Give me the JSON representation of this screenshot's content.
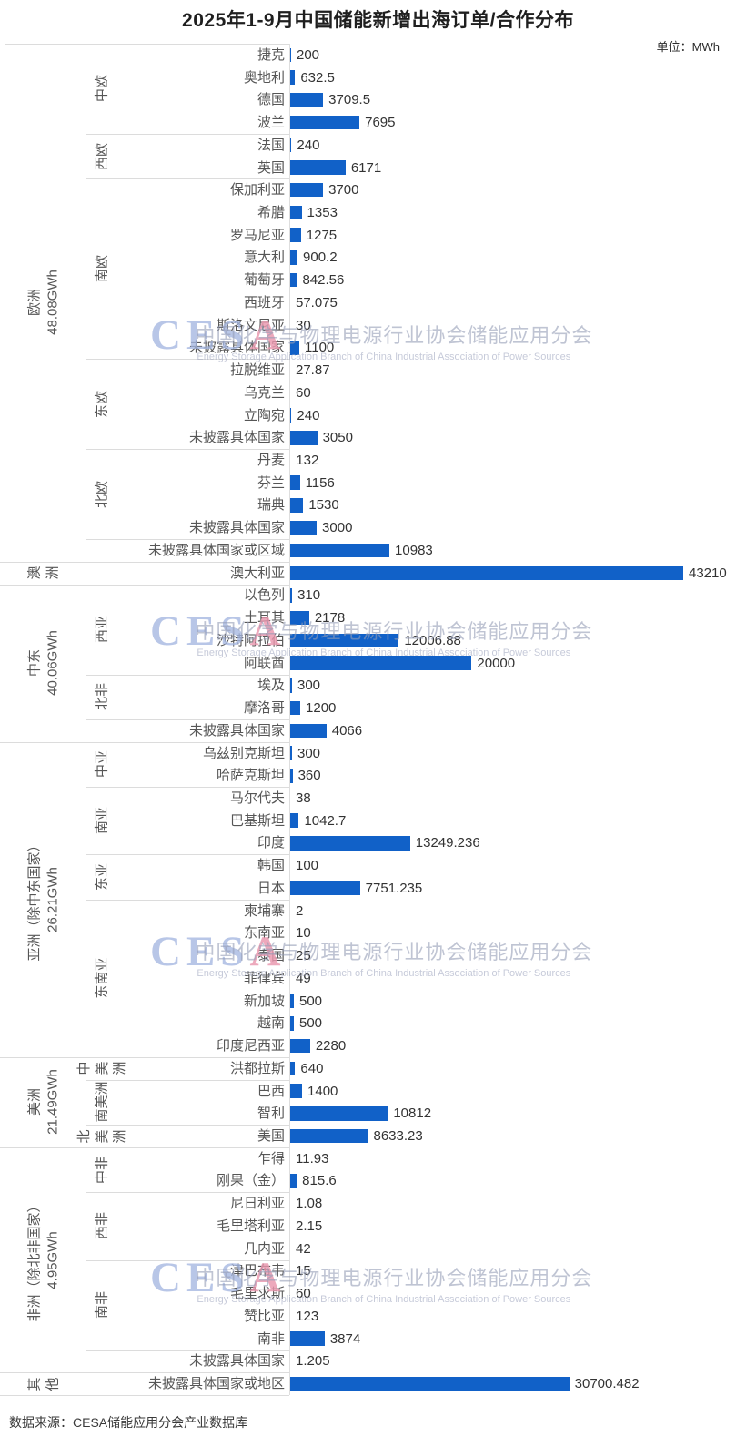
{
  "page": {
    "title": "2025年1-9月中国储能新增出海订单/合作分布",
    "unit_label": "单位：MWh",
    "source": "数据来源：CESA储能应用分会产业数据库"
  },
  "watermark": {
    "logo_prefix": "CES",
    "logo_suffix": "A",
    "cn": "中国化学与物理电源行业协会储能应用分会",
    "en": "Energy Storage Application Branch of China Industrial Association of Power Sources"
  },
  "chart_data": {
    "type": "bar",
    "orientation": "horizontal",
    "title": "2025年1-9月中国储能新增出海订单/合作分布",
    "unit": "MWh",
    "max_value": 43210,
    "bar_color": "#1161c8",
    "legend": false,
    "grid": false,
    "regions": [
      {
        "name": "欧洲",
        "total": "48.08GWh",
        "groups": [
          {
            "name": "中欧",
            "rows": [
              [
                "捷克",
                200
              ],
              [
                "奥地利",
                632.5
              ],
              [
                "德国",
                3709.5
              ],
              [
                "波兰",
                7695
              ]
            ]
          },
          {
            "name": "西欧",
            "rows": [
              [
                "法国",
                240
              ],
              [
                "英国",
                6171
              ]
            ]
          },
          {
            "name": "南欧",
            "rows": [
              [
                "保加利亚",
                3700
              ],
              [
                "希腊",
                1353
              ],
              [
                "罗马尼亚",
                1275
              ],
              [
                "意大利",
                900.2
              ],
              [
                "葡萄牙",
                842.56
              ],
              [
                "西班牙",
                57.075
              ],
              [
                "斯洛文尼亚",
                30
              ],
              [
                "未披露具体国家",
                1100
              ]
            ]
          },
          {
            "name": "东欧",
            "rows": [
              [
                "拉脱维亚",
                27.87
              ],
              [
                "乌克兰",
                60
              ],
              [
                "立陶宛",
                240
              ],
              [
                "未披露具体国家",
                3050
              ]
            ]
          },
          {
            "name": "北欧",
            "rows": [
              [
                "丹麦",
                132
              ],
              [
                "芬兰",
                1156
              ],
              [
                "瑞典",
                1530
              ],
              [
                "未披露具体国家",
                3000
              ]
            ]
          },
          {
            "name": "",
            "rows": [
              [
                "未披露具体国家或区域",
                10983
              ]
            ]
          }
        ]
      },
      {
        "name": "澳洲",
        "total": "",
        "groups": [
          {
            "name": "",
            "rows": [
              [
                "澳大利亚",
                43210
              ]
            ]
          }
        ]
      },
      {
        "name": "中东",
        "total": "40.06GWh",
        "groups": [
          {
            "name": "西亚",
            "rows": [
              [
                "以色列",
                310
              ],
              [
                "土耳其",
                2178
              ],
              [
                "沙特阿拉伯",
                12006.88
              ],
              [
                "阿联酋",
                20000
              ]
            ]
          },
          {
            "name": "北非",
            "rows": [
              [
                "埃及",
                300
              ],
              [
                "摩洛哥",
                1200
              ]
            ]
          },
          {
            "name": "",
            "rows": [
              [
                "未披露具体国家",
                4066
              ]
            ]
          }
        ]
      },
      {
        "name": "亚洲（除中东国家）",
        "total": "26.21GWh",
        "groups": [
          {
            "name": "中亚",
            "rows": [
              [
                "乌兹别克斯坦",
                300
              ],
              [
                "哈萨克斯坦",
                360
              ]
            ]
          },
          {
            "name": "南亚",
            "rows": [
              [
                "马尔代夫",
                38
              ],
              [
                "巴基斯坦",
                1042.7
              ],
              [
                "印度",
                13249.236
              ]
            ]
          },
          {
            "name": "东亚",
            "rows": [
              [
                "韩国",
                100
              ],
              [
                "日本",
                7751.235
              ]
            ]
          },
          {
            "name": "东南亚",
            "rows": [
              [
                "柬埔寨",
                2
              ],
              [
                "东南亚",
                10
              ],
              [
                "泰国",
                25
              ],
              [
                "菲律宾",
                49
              ],
              [
                "新加坡",
                500
              ],
              [
                "越南",
                500
              ],
              [
                "印度尼西亚",
                2280
              ]
            ]
          }
        ]
      },
      {
        "name": "美洲",
        "total": "21.49GWh",
        "groups": [
          {
            "name": "中美洲",
            "rows": [
              [
                "洪都拉斯",
                640
              ]
            ]
          },
          {
            "name": "南美洲",
            "rows": [
              [
                "巴西",
                1400
              ],
              [
                "智利",
                10812
              ]
            ]
          },
          {
            "name": "北美洲",
            "rows": [
              [
                "美国",
                8633.23
              ]
            ]
          }
        ]
      },
      {
        "name": "非洲（除北非国家）",
        "total": "4.95GWh",
        "groups": [
          {
            "name": "中非",
            "rows": [
              [
                "乍得",
                11.93
              ],
              [
                "刚果（金）",
                815.6
              ]
            ]
          },
          {
            "name": "西非",
            "rows": [
              [
                "尼日利亚",
                1.08
              ],
              [
                "毛里塔利亚",
                2.15
              ],
              [
                "几内亚",
                42
              ]
            ]
          },
          {
            "name": "南非",
            "rows": [
              [
                "津巴布韦",
                15
              ],
              [
                "毛里求斯",
                60
              ],
              [
                "赞比亚",
                123
              ],
              [
                "南非",
                3874
              ]
            ]
          },
          {
            "name": "",
            "rows": [
              [
                "未披露具体国家",
                1.205
              ]
            ]
          }
        ]
      },
      {
        "name": "其他",
        "total": "",
        "groups": [
          {
            "name": "",
            "rows": [
              [
                "未披露具体国家或地区",
                30700.482
              ]
            ]
          }
        ]
      }
    ]
  }
}
